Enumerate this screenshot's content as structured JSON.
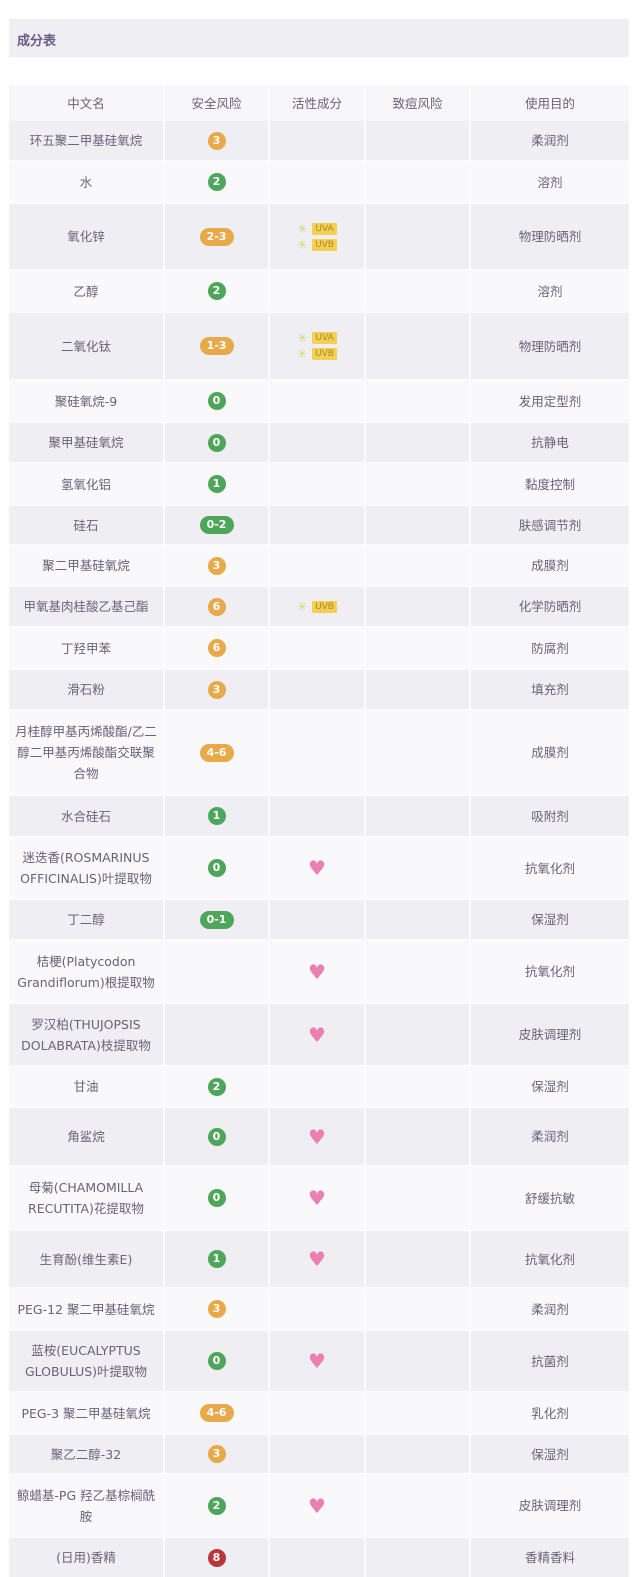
{
  "title": "成分表",
  "colors": {
    "low": "#4ea65a",
    "mid": "#e8a94a",
    "high": "#b8373a",
    "heart": "#ea7fb2",
    "uv_tag": "#f2cf55"
  },
  "headers": [
    "中文名",
    "安全风险",
    "活性成分",
    "致痘风险",
    "使用目的"
  ],
  "rows": [
    {
      "name": "环五聚二甲基硅氧烷",
      "risk": "3",
      "risk_level": "mid",
      "active": [],
      "acne": "",
      "purpose": "柔润剂"
    },
    {
      "name": "水",
      "risk": "2",
      "risk_level": "low",
      "active": [],
      "acne": "",
      "purpose": "溶剂"
    },
    {
      "name": "氧化锌",
      "risk": "2-3",
      "risk_level": "mid",
      "active": [
        "UVA",
        "UVB"
      ],
      "acne": "",
      "purpose": "物理防晒剂"
    },
    {
      "name": "乙醇",
      "risk": "2",
      "risk_level": "low",
      "active": [],
      "acne": "",
      "purpose": "溶剂"
    },
    {
      "name": "二氧化钛",
      "risk": "1-3",
      "risk_level": "mid",
      "active": [
        "UVA",
        "UVB"
      ],
      "acne": "",
      "purpose": "物理防晒剂"
    },
    {
      "name": "聚硅氧烷-9",
      "risk": "0",
      "risk_level": "low",
      "active": [],
      "acne": "",
      "purpose": "发用定型剂"
    },
    {
      "name": "聚甲基硅氧烷",
      "risk": "0",
      "risk_level": "low",
      "active": [],
      "acne": "",
      "purpose": "抗静电"
    },
    {
      "name": "氢氧化铝",
      "risk": "1",
      "risk_level": "low",
      "active": [],
      "acne": "",
      "purpose": "黏度控制"
    },
    {
      "name": "硅石",
      "risk": "0-2",
      "risk_level": "low",
      "active": [],
      "acne": "",
      "purpose": "肤感调节剂"
    },
    {
      "name": "聚二甲基硅氧烷",
      "risk": "3",
      "risk_level": "mid",
      "active": [],
      "acne": "",
      "purpose": "成膜剂"
    },
    {
      "name": "甲氧基肉桂酸乙基己酯",
      "risk": "6",
      "risk_level": "mid",
      "active": [
        "UVB"
      ],
      "acne": "",
      "purpose": "化学防晒剂"
    },
    {
      "name": "丁羟甲苯",
      "risk": "6",
      "risk_level": "mid",
      "active": [],
      "acne": "",
      "purpose": "防腐剂"
    },
    {
      "name": "滑石粉",
      "risk": "3",
      "risk_level": "mid",
      "active": [],
      "acne": "",
      "purpose": "填充剂"
    },
    {
      "name": "月桂醇甲基丙烯酸酯/乙二醇二甲基丙烯酸酯交联聚合物",
      "risk": "4-6",
      "risk_level": "mid",
      "active": [],
      "acne": "",
      "purpose": "成膜剂"
    },
    {
      "name": "水合硅石",
      "risk": "1",
      "risk_level": "low",
      "active": [],
      "acne": "",
      "purpose": "吸附剂"
    },
    {
      "name": "迷迭香(ROSMARINUS OFFICINALIS)叶提取物",
      "risk": "0",
      "risk_level": "low",
      "active": [
        "heart"
      ],
      "acne": "",
      "purpose": "抗氧化剂"
    },
    {
      "name": "丁二醇",
      "risk": "0-1",
      "risk_level": "low",
      "active": [],
      "acne": "",
      "purpose": "保湿剂"
    },
    {
      "name": "桔梗(Platycodon Grandiflorum)根提取物",
      "risk": "",
      "risk_level": "",
      "active": [
        "heart"
      ],
      "acne": "",
      "purpose": "抗氧化剂"
    },
    {
      "name": "罗汉柏(THUJOPSIS DOLABRATA)枝提取物",
      "risk": "",
      "risk_level": "",
      "active": [
        "heart"
      ],
      "acne": "",
      "purpose": "皮肤调理剂"
    },
    {
      "name": "甘油",
      "risk": "2",
      "risk_level": "low",
      "active": [],
      "acne": "",
      "purpose": "保湿剂"
    },
    {
      "name": "角鲨烷",
      "risk": "0",
      "risk_level": "low",
      "active": [
        "heart"
      ],
      "acne": "",
      "purpose": "柔润剂"
    },
    {
      "name": "母菊(CHAMOMILLA RECUTITA)花提取物",
      "risk": "0",
      "risk_level": "low",
      "active": [
        "heart"
      ],
      "acne": "",
      "purpose": "舒缓抗敏"
    },
    {
      "name": "生育酚(维生素E)",
      "risk": "1",
      "risk_level": "low",
      "active": [
        "heart"
      ],
      "acne": "",
      "purpose": "抗氧化剂"
    },
    {
      "name": "PEG-12 聚二甲基硅氧烷",
      "risk": "3",
      "risk_level": "mid",
      "active": [],
      "acne": "",
      "purpose": "柔润剂"
    },
    {
      "name": "蓝桉(EUCALYPTUS GLOBULUS)叶提取物",
      "risk": "0",
      "risk_level": "low",
      "active": [
        "heart"
      ],
      "acne": "",
      "purpose": "抗菌剂"
    },
    {
      "name": "PEG-3 聚二甲基硅氧烷",
      "risk": "4-6",
      "risk_level": "mid",
      "active": [],
      "acne": "",
      "purpose": "乳化剂"
    },
    {
      "name": "聚乙二醇-32",
      "risk": "3",
      "risk_level": "mid",
      "active": [],
      "acne": "",
      "purpose": "保湿剂"
    },
    {
      "name": "鲸蜡基-PG 羟乙基棕榈酰胺",
      "risk": "2",
      "risk_level": "low",
      "active": [
        "heart"
      ],
      "acne": "",
      "purpose": "皮肤调理剂"
    },
    {
      "name": "(日用)香精",
      "risk": "8",
      "risk_level": "high",
      "active": [],
      "acne": "",
      "purpose": "香精香料"
    }
  ]
}
